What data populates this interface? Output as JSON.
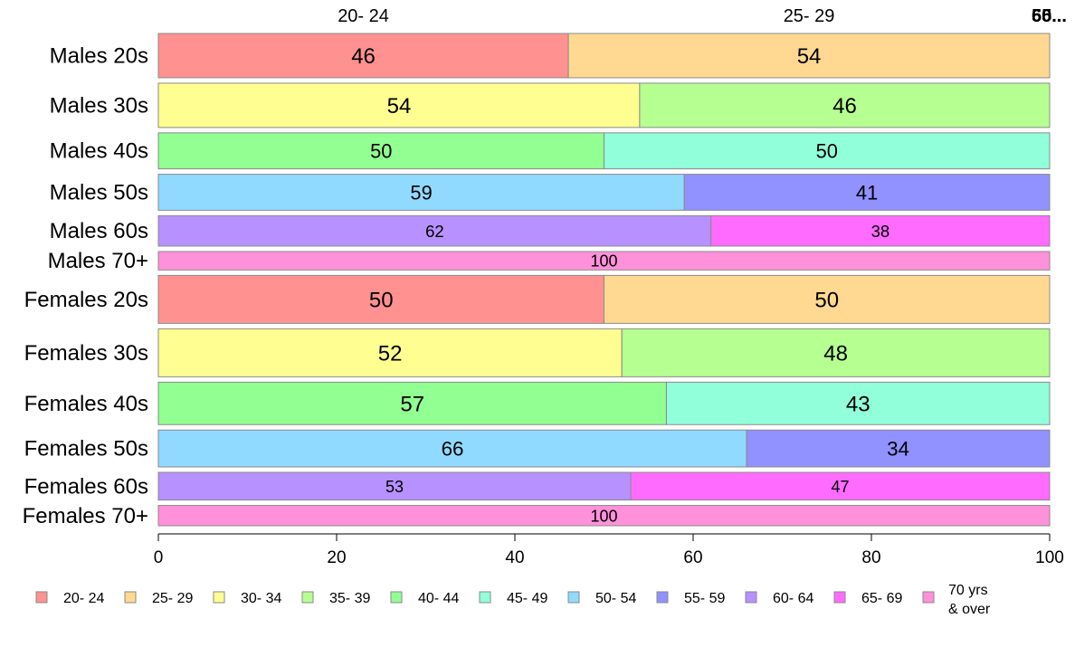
{
  "chart_data": {
    "type": "bar",
    "orientation": "horizontal",
    "stacked": true,
    "percent": true,
    "categories": [
      "Males 20s",
      "Males 30s",
      "Males 40s",
      "Males 50s",
      "Males 60s",
      "Males 70+",
      "Females 20s",
      "Females 30s",
      "Females 40s",
      "Females 50s",
      "Females 60s",
      "Females 70+"
    ],
    "category_weights": [
      48,
      48,
      39,
      39,
      33,
      20,
      52,
      52,
      46,
      40,
      30,
      22
    ],
    "top_labels": [
      "20- 24",
      "25- 29",
      "50...",
      "65..."
    ],
    "segments": [
      [
        {
          "group": "20- 24",
          "value": 46
        },
        {
          "group": "25- 29",
          "value": 54
        }
      ],
      [
        {
          "group": "30- 34",
          "value": 54
        },
        {
          "group": "35- 39",
          "value": 46
        }
      ],
      [
        {
          "group": "40- 44",
          "value": 50
        },
        {
          "group": "45- 49",
          "value": 50
        }
      ],
      [
        {
          "group": "50- 54",
          "value": 59
        },
        {
          "group": "55- 59",
          "value": 41
        }
      ],
      [
        {
          "group": "60- 64",
          "value": 62
        },
        {
          "group": "65- 69",
          "value": 38
        }
      ],
      [
        {
          "group": "70 yrs & over",
          "value": 100
        }
      ],
      [
        {
          "group": "20- 24",
          "value": 50
        },
        {
          "group": "25- 29",
          "value": 50
        }
      ],
      [
        {
          "group": "30- 34",
          "value": 52
        },
        {
          "group": "35- 39",
          "value": 48
        }
      ],
      [
        {
          "group": "40- 44",
          "value": 57
        },
        {
          "group": "45- 49",
          "value": 43
        }
      ],
      [
        {
          "group": "50- 54",
          "value": 66
        },
        {
          "group": "55- 59",
          "value": 34
        }
      ],
      [
        {
          "group": "60- 64",
          "value": 53
        },
        {
          "group": "65- 69",
          "value": 47
        }
      ],
      [
        {
          "group": "70 yrs & over",
          "value": 100
        }
      ]
    ],
    "legend": [
      {
        "label": "20- 24",
        "color": "#ff9191"
      },
      {
        "label": "25- 29",
        "color": "#ffd991"
      },
      {
        "label": "30- 34",
        "color": "#ffff91"
      },
      {
        "label": "35- 39",
        "color": "#b6ff91"
      },
      {
        "label": "40- 44",
        "color": "#91ff91"
      },
      {
        "label": "45- 49",
        "color": "#91ffda"
      },
      {
        "label": "50- 54",
        "color": "#91daff"
      },
      {
        "label": "55- 59",
        "color": "#9191ff"
      },
      {
        "label": "60- 64",
        "color": "#b691ff"
      },
      {
        "label": "65- 69",
        "color": "#ff6bff"
      },
      {
        "label": "70 yrs\n& over",
        "color": "#ff91da"
      }
    ],
    "xlim": [
      0,
      100
    ],
    "xticks": [
      0,
      20,
      40,
      60,
      80,
      100
    ],
    "legend_position": "bottom",
    "grid": false
  }
}
